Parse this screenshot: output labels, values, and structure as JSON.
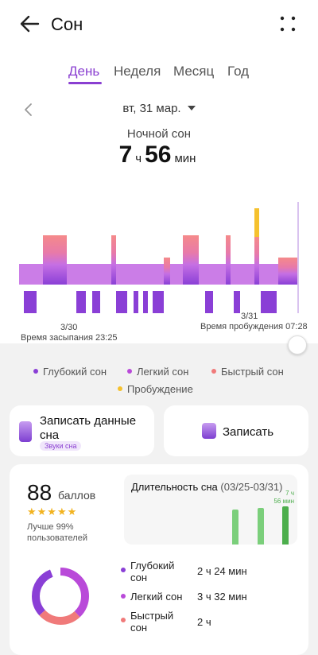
{
  "header": {
    "title": "Сон"
  },
  "tabs": [
    {
      "label": "День",
      "active": true
    },
    {
      "label": "Неделя",
      "active": false
    },
    {
      "label": "Месяц",
      "active": false
    },
    {
      "label": "Год",
      "active": false
    }
  ],
  "date": {
    "label": "вт, 31 мар."
  },
  "summary": {
    "label": "Ночной сон",
    "hours": "7",
    "hours_unit": "ч",
    "minutes": "56",
    "minutes_unit": "мин"
  },
  "timeline": {
    "start_date": "3/30",
    "sleep_start": "Время засыпания 23:25",
    "end_date": "3/31",
    "wake_time": "Время пробуждения 07:28",
    "colors": {
      "deep": "#8a3fd6",
      "light": "#c56fe4",
      "rem": "#f58a8a",
      "awake": "#f5c12e"
    }
  },
  "legend": [
    {
      "label": "Глубокий сон",
      "color": "#8a3fd6"
    },
    {
      "label": "Легкий сон",
      "color": "#b94ad9"
    },
    {
      "label": "Быстрый сон",
      "color": "#f07a7a"
    },
    {
      "label": "Пробуждение",
      "color": "#f5c12e"
    }
  ],
  "actions": {
    "record_data": "Записать данные сна",
    "record_badge": "Звуки сна",
    "note": "Записать"
  },
  "score": {
    "value": "88",
    "unit": "баллов",
    "stars": "★★★★★",
    "rating": 4.5,
    "better": "Лучше 99% пользователей"
  },
  "duration_card": {
    "title": "Длительность сна",
    "range": "(03/25-03/31)",
    "max_label": "7 ч",
    "max_label2": "56 мин"
  },
  "stages": [
    {
      "label": "Глубокий сон",
      "value": "2 ч 24 мин",
      "color": "#8a3fd6"
    },
    {
      "label": "Легкий сон",
      "value": "3 ч 32 мин",
      "color": "#b94ad9"
    },
    {
      "label": "Быстрый сон",
      "value": "2 ч",
      "color": "#f07a7a"
    }
  ]
}
